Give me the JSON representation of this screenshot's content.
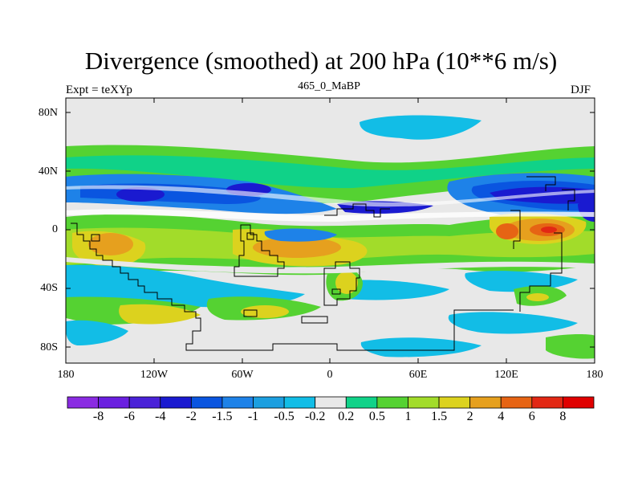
{
  "title": "Divergence (smoothed) at 200 hPa (10**6 m/s)",
  "left_label": "Expt = teXYp",
  "center_label": "465_0_MaBP",
  "right_label": "DJF",
  "y_ticks": [
    "80N",
    "40N",
    "0",
    "40S",
    "80S"
  ],
  "x_ticks": [
    "180",
    "120W",
    "60W",
    "0",
    "60E",
    "120E",
    "180"
  ],
  "colorbar": {
    "colors": [
      "#8a2be2",
      "#6a1fe0",
      "#4a22d8",
      "#1a1ad0",
      "#0a55e0",
      "#1e82e8",
      "#1c9fe0",
      "#12bde6",
      "#e8e8e8",
      "#10d288",
      "#55d232",
      "#a2dc2a",
      "#dcd21e",
      "#e6a01e",
      "#e66414",
      "#e22814",
      "#e00000"
    ],
    "labels": [
      "-8",
      "-6",
      "-4",
      "-2",
      "-1.5",
      "-1",
      "-0.5",
      "-0.2",
      "0.2",
      "0.5",
      "1",
      "1.5",
      "2",
      "4",
      "6",
      "8"
    ]
  },
  "palette": {
    "ocean_bg": "#e8e8e8",
    "green": "#55d232",
    "lightgreen": "#10d288",
    "yellow": "#dcd21e",
    "orange": "#e6a01e",
    "red": "#e22814",
    "blue": "#1a1ad0",
    "midblue": "#0a55e0",
    "lightblue": "#1e82e8",
    "cyan": "#12bde6"
  }
}
